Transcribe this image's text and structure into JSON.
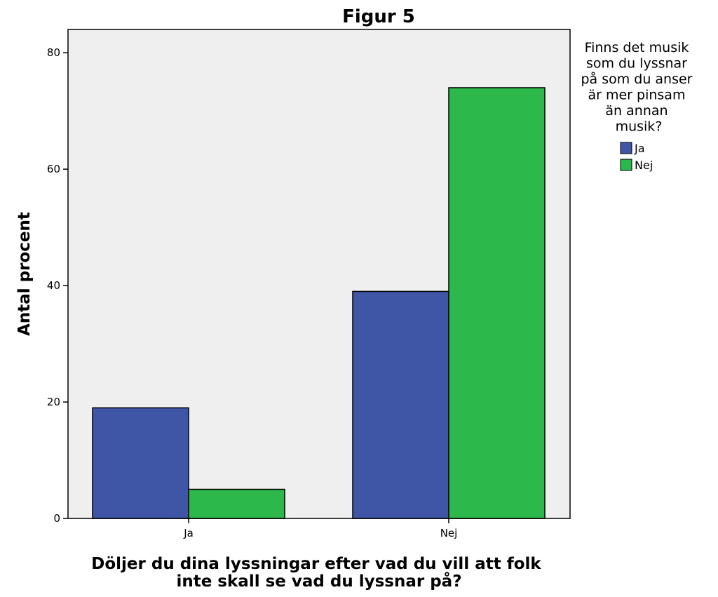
{
  "chart_data": {
    "type": "bar",
    "title": "Figur 5",
    "xlabel": [
      "Döljer du dina lyssningar efter vad du vill att folk",
      "inte skall se vad du lyssnar på?"
    ],
    "ylabel": "Antal procent",
    "categories": [
      "Ja",
      "Nej"
    ],
    "series": [
      {
        "name": "Ja",
        "values": [
          19,
          39
        ],
        "color": "#3f56a6"
      },
      {
        "name": "Nej",
        "values": [
          5,
          74
        ],
        "color": "#2db84b"
      }
    ],
    "ylim": [
      0,
      84
    ],
    "yticks": [
      0,
      20,
      40,
      60,
      80
    ],
    "grid": false,
    "plot_background": "#efefef",
    "legend": {
      "placement": "top-right",
      "title_lines": [
        "Finns det musik",
        "som du lyssnar",
        "på som du anser",
        "är mer pinsam",
        "än annan",
        "musik?"
      ]
    }
  }
}
